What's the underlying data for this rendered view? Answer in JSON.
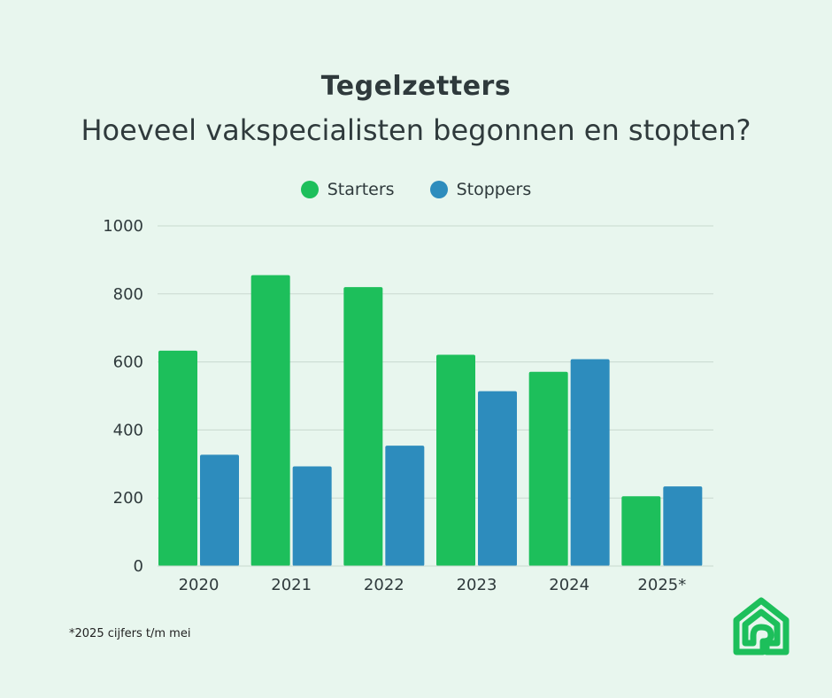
{
  "colors": {
    "background": "#e8f6ee",
    "starters": "#1dbf5b",
    "stoppers": "#2d8cbd",
    "grid": "#c9d9cf",
    "text": "#2f3a3c",
    "logo": "#1dbf5b"
  },
  "footnote": "*2025 cijfers t/m mei",
  "logo_icon": "house-logo-icon",
  "chart_data": {
    "type": "bar",
    "title": "Tegelzetters",
    "subtitle": "Hoeveel vakspecialisten begonnen en stopten?",
    "categories": [
      "2020",
      "2021",
      "2022",
      "2023",
      "2024",
      "2025*"
    ],
    "series": [
      {
        "name": "Starters",
        "values": [
          633,
          855,
          820,
          621,
          571,
          205
        ]
      },
      {
        "name": "Stoppers",
        "values": [
          327,
          293,
          354,
          514,
          608,
          234
        ]
      }
    ],
    "yticks": [
      "0",
      "200",
      "400",
      "600",
      "800",
      "1000"
    ],
    "ylim": [
      0,
      1000
    ],
    "grid": true,
    "legend_position": "top-center"
  }
}
